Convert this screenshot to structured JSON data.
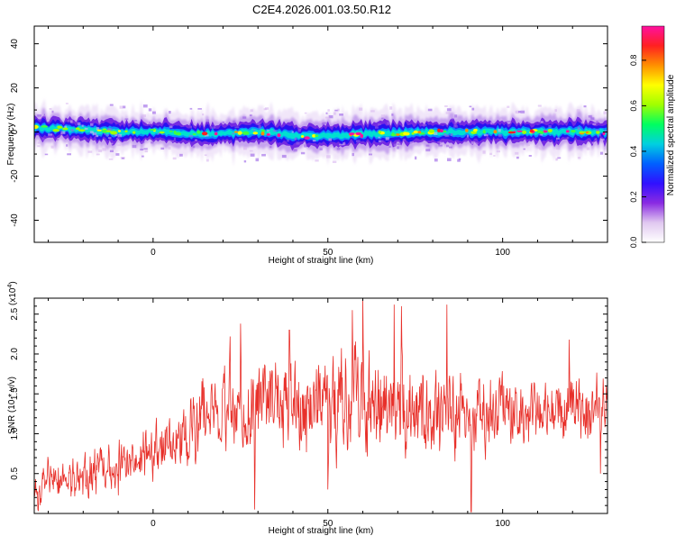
{
  "page_title": "C2E4.2026.001.03.50.R12",
  "chart_data": [
    {
      "type": "heatmap",
      "xlabel": "Height of straight line (km)",
      "ylabel": "Frequency (Hz)",
      "xlim": [
        -34,
        130
      ],
      "ylim": [
        -50,
        48
      ],
      "xticks": [
        0,
        50,
        100
      ],
      "yticks": [
        -40,
        -20,
        0,
        20,
        40
      ],
      "ridge_center_hz": [
        {
          "x": -34,
          "y": 2
        },
        {
          "x": -20,
          "y": 1
        },
        {
          "x": -10,
          "y": 0
        },
        {
          "x": 0,
          "y": 0.5
        },
        {
          "x": 15,
          "y": -1
        },
        {
          "x": 30,
          "y": 0
        },
        {
          "x": 45,
          "y": -2
        },
        {
          "x": 60,
          "y": -1
        },
        {
          "x": 80,
          "y": 0
        },
        {
          "x": 100,
          "y": 0
        },
        {
          "x": 130,
          "y": 0
        }
      ],
      "ridge_halfwidth_hz": 6,
      "colorbar": {
        "label": "Normalized spectral amplitude",
        "range": [
          0,
          0.95
        ],
        "ticks": [
          "0.0",
          "0.2",
          "0.4",
          "0.6",
          "0.8"
        ],
        "colors": [
          "#ffffff",
          "#e0c8f0",
          "#8a2be2",
          "#3010ff",
          "#0060ff",
          "#00d0e0",
          "#00ff60",
          "#a0ff00",
          "#ffff00",
          "#ff9000",
          "#ff2020",
          "#ff10a0"
        ]
      }
    },
    {
      "type": "line",
      "xlabel": "Height of straight line (km)",
      "ylabel": "SNR (10 * v/v)",
      "scale_note": "(x10",
      "scale_exp": "4",
      "xlim": [
        -34,
        130
      ],
      "ylim": [
        0,
        2.7
      ],
      "xticks": [
        0,
        50,
        100
      ],
      "yticks": [
        "0.5",
        "1.0",
        "1.5",
        "2.0",
        "2.5"
      ],
      "series_color": "#e8302a",
      "envelope": [
        {
          "x": -34,
          "low": 0.05,
          "high": 0.65
        },
        {
          "x": -20,
          "low": 0.1,
          "high": 0.8
        },
        {
          "x": -10,
          "low": 0.2,
          "high": 1.0
        },
        {
          "x": 0,
          "low": 0.4,
          "high": 1.2
        },
        {
          "x": 10,
          "low": 0.4,
          "high": 1.4
        },
        {
          "x": 14,
          "low": 0.6,
          "high": 2.0
        },
        {
          "x": 25,
          "low": 0.6,
          "high": 2.1
        },
        {
          "x": 40,
          "low": 0.5,
          "high": 2.1
        },
        {
          "x": 55,
          "low": 0.5,
          "high": 2.4
        },
        {
          "x": 65,
          "low": 0.5,
          "high": 2.2
        },
        {
          "x": 80,
          "low": 0.5,
          "high": 2.0
        },
        {
          "x": 95,
          "low": 0.6,
          "high": 1.8
        },
        {
          "x": 110,
          "low": 0.8,
          "high": 1.8
        },
        {
          "x": 130,
          "low": 0.8,
          "high": 1.8
        }
      ],
      "peaks": [
        {
          "x": 60,
          "y": 2.72
        },
        {
          "x": 69,
          "y": 2.62
        },
        {
          "x": 84,
          "y": 2.62
        },
        {
          "x": 57,
          "y": 2.55
        },
        {
          "x": 71,
          "y": 2.6
        },
        {
          "x": 22,
          "y": 2.22
        },
        {
          "x": 25,
          "y": 2.38
        },
        {
          "x": 39,
          "y": 2.3
        },
        {
          "x": 119,
          "y": 2.18
        }
      ],
      "troughs": [
        {
          "x": 91,
          "y": 0.02
        },
        {
          "x": 29,
          "y": 0.05
        },
        {
          "x": 50,
          "y": 0.3
        },
        {
          "x": 128,
          "y": 0.5
        },
        {
          "x": -33,
          "y": 0.05
        }
      ]
    }
  ]
}
